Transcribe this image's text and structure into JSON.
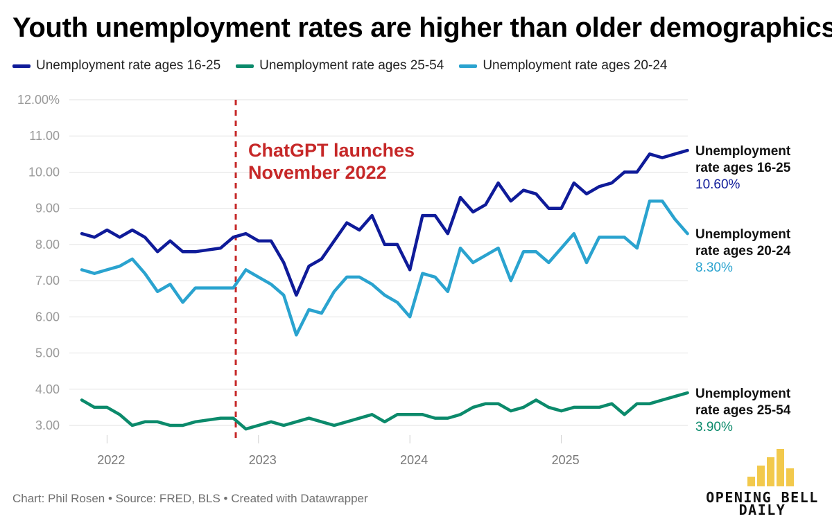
{
  "title": "Youth unemployment rates are higher than older demographics",
  "legend": [
    {
      "label": "Unemployment rate ages 16-25",
      "color": "#0f1b99"
    },
    {
      "label": "Unemployment rate ages 25-54",
      "color": "#0b8a6b"
    },
    {
      "label": "Unemployment rate ages 20-24",
      "color": "#2aa3cf"
    }
  ],
  "footer": "Chart: Phil Rosen • Source: FRED, BLS • Created with Datawrapper",
  "logo": {
    "line1": "OPENING BELL",
    "line2": "DAILY"
  },
  "chart_data": {
    "type": "line",
    "title": "Youth unemployment rates are higher than older demographics",
    "xlabel": "",
    "ylabel": "",
    "ylim": [
      2.5,
      12.0
    ],
    "y_ticks": [
      {
        "value": 3.0,
        "label": "3.00"
      },
      {
        "value": 4.0,
        "label": "4.00"
      },
      {
        "value": 5.0,
        "label": "5.00"
      },
      {
        "value": 6.0,
        "label": "6.00"
      },
      {
        "value": 7.0,
        "label": "7.00"
      },
      {
        "value": 8.0,
        "label": "8.00"
      },
      {
        "value": 9.0,
        "label": "9.00"
      },
      {
        "value": 10.0,
        "label": "10.00"
      },
      {
        "value": 11.0,
        "label": "11.00"
      },
      {
        "value": 12.0,
        "label": "12.00%"
      }
    ],
    "x_start": "2021-11",
    "x_ticks": [
      {
        "label": "2022",
        "index": 2
      },
      {
        "label": "2023",
        "index": 14
      },
      {
        "label": "2024",
        "index": 26
      },
      {
        "label": "2025",
        "index": 38
      }
    ],
    "annotation": {
      "lines": [
        "ChatGPT launches",
        "November 2022"
      ],
      "index": 12.2,
      "color": "#c62828"
    },
    "series": [
      {
        "name": "Unemployment rate ages 16-25",
        "color": "#0f1b99",
        "end_label": [
          "Unemployment",
          "rate ages 16-25"
        ],
        "end_value": "10.60%",
        "values": [
          8.3,
          8.2,
          8.4,
          8.2,
          8.4,
          8.2,
          7.8,
          8.1,
          7.8,
          7.8,
          7.85,
          7.9,
          8.2,
          8.3,
          8.1,
          8.1,
          7.5,
          6.6,
          7.4,
          7.6,
          8.1,
          8.6,
          8.4,
          8.8,
          8.0,
          8.0,
          7.3,
          8.8,
          8.8,
          8.3,
          9.3,
          8.9,
          9.1,
          9.7,
          9.2,
          9.5,
          9.4,
          9.0,
          9.0,
          9.7,
          9.4,
          9.6,
          9.7,
          10.0,
          10.0,
          10.5,
          10.4,
          10.5,
          10.6
        ]
      },
      {
        "name": "Unemployment rate ages 20-24",
        "color": "#2aa3cf",
        "end_label": [
          "Unemployment",
          "rate ages 20-24"
        ],
        "end_value": "8.30%",
        "values": [
          7.3,
          7.2,
          7.3,
          7.4,
          7.6,
          7.2,
          6.7,
          6.9,
          6.4,
          6.8,
          6.8,
          6.8,
          6.8,
          7.3,
          7.1,
          6.9,
          6.6,
          5.5,
          6.2,
          6.1,
          6.7,
          7.1,
          7.1,
          6.9,
          6.6,
          6.4,
          6.0,
          7.2,
          7.1,
          6.7,
          7.9,
          7.5,
          7.7,
          7.9,
          7.0,
          7.8,
          7.8,
          7.5,
          7.9,
          8.3,
          7.5,
          8.2,
          8.2,
          8.2,
          7.9,
          9.2,
          9.2,
          8.7,
          8.3
        ]
      },
      {
        "name": "Unemployment rate ages 25-54",
        "color": "#0b8a6b",
        "end_label": [
          "Unemployment",
          "rate ages 25-54"
        ],
        "end_value": "3.90%",
        "values": [
          3.7,
          3.5,
          3.5,
          3.3,
          3.0,
          3.1,
          3.1,
          3.0,
          3.0,
          3.1,
          3.15,
          3.2,
          3.2,
          2.9,
          3.0,
          3.1,
          3.0,
          3.1,
          3.2,
          3.1,
          3.0,
          3.1,
          3.2,
          3.3,
          3.1,
          3.3,
          3.3,
          3.3,
          3.2,
          3.2,
          3.3,
          3.5,
          3.6,
          3.6,
          3.4,
          3.5,
          3.7,
          3.5,
          3.4,
          3.5,
          3.5,
          3.5,
          3.6,
          3.3,
          3.6,
          3.6,
          3.7,
          3.8,
          3.9
        ]
      }
    ]
  }
}
